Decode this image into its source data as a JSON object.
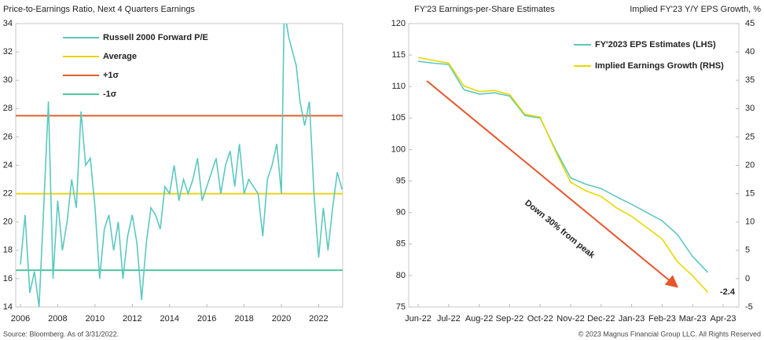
{
  "chart_data": [
    {
      "type": "line",
      "title": "Price-to-Earnings Ratio, Next 4 Quarters Earnings",
      "x": [
        2006.0,
        2006.25,
        2006.5,
        2006.75,
        2007.0,
        2007.25,
        2007.5,
        2007.75,
        2008.0,
        2008.25,
        2008.5,
        2008.75,
        2009.0,
        2009.25,
        2009.5,
        2009.75,
        2010.0,
        2010.25,
        2010.5,
        2010.75,
        2011.0,
        2011.25,
        2011.5,
        2011.75,
        2012.0,
        2012.25,
        2012.5,
        2012.75,
        2013.0,
        2013.25,
        2013.5,
        2013.75,
        2014.0,
        2014.25,
        2014.5,
        2014.75,
        2015.0,
        2015.25,
        2015.5,
        2015.75,
        2016.0,
        2016.25,
        2016.5,
        2016.75,
        2017.0,
        2017.25,
        2017.5,
        2017.75,
        2018.0,
        2018.25,
        2018.5,
        2018.75,
        2019.0,
        2019.25,
        2019.5,
        2019.75,
        2020.0,
        2020.15,
        2020.4,
        2020.6,
        2020.8,
        2021.0,
        2021.25,
        2021.5,
        2021.75,
        2022.0,
        2022.25,
        2022.5,
        2022.75,
        2023.0,
        2023.25
      ],
      "series": [
        {
          "name": "Russell 2000 Forward P/E",
          "color": "#5cc8c0",
          "values": [
            17,
            20.5,
            15,
            16.5,
            14,
            21,
            28.5,
            16,
            21.5,
            18,
            20,
            23,
            21,
            27.8,
            24,
            24.5,
            21,
            16,
            19.5,
            20.5,
            18,
            20,
            16,
            19,
            20.5,
            18.5,
            14.5,
            18.5,
            21,
            20.5,
            19.5,
            22.5,
            22,
            24,
            21.5,
            23,
            22,
            23,
            24.5,
            21.5,
            22.5,
            23.5,
            24.5,
            22,
            24,
            25,
            22.5,
            25.5,
            22,
            23,
            22.5,
            22,
            19,
            23,
            24,
            25.5,
            22,
            35,
            33,
            32,
            31,
            28.5,
            26.8,
            28.5,
            22,
            17.5,
            21,
            18,
            21,
            23.5,
            22.3
          ]
        }
      ],
      "reference_lines": [
        {
          "name": "Average",
          "color": "#e8d41a",
          "value": 22
        },
        {
          "name": "+1σ",
          "color": "#e0602a",
          "value": 27.5
        },
        {
          "name": "-1σ",
          "color": "#4fc7a0",
          "value": 16.6
        }
      ],
      "xlim": [
        2006,
        2023.5
      ],
      "xticks": [
        2006,
        2008,
        2010,
        2012,
        2014,
        2016,
        2018,
        2020,
        2022
      ],
      "ylim": [
        14,
        34
      ],
      "yticks": [
        14,
        16,
        18,
        20,
        22,
        24,
        26,
        28,
        30,
        32,
        34
      ],
      "grid": false
    },
    {
      "type": "line",
      "title": "FY'23 Earnings-per-Share Estimates",
      "y2_label": "Implied FY'23 Y/Y EPS Growth, %",
      "x": [
        0,
        0.5,
        1,
        1.5,
        2,
        2.5,
        3,
        3.5,
        4,
        4.5,
        5,
        5.5,
        6,
        6.5,
        7,
        7.5,
        8,
        8.5,
        9,
        9.5
      ],
      "series": [
        {
          "name": "FY'2023 EPS Estimates (LHS)",
          "color": "#5cc8c0",
          "values": [
            114,
            113.7,
            113.5,
            109.5,
            108.8,
            109,
            108.5,
            105.4,
            105,
            100,
            95.5,
            94.5,
            93.8,
            92.5,
            91.3,
            90,
            88.7,
            86.5,
            83,
            80.5
          ]
        },
        {
          "name": "Implied Earnings Growth (RHS)",
          "color": "#e8d800",
          "axis": "y2",
          "values": [
            39,
            38.5,
            38,
            34,
            33,
            33.2,
            32.5,
            29,
            28.5,
            22.5,
            17,
            15.5,
            14.5,
            12.5,
            11,
            9,
            7,
            3,
            0.5,
            -2.4
          ]
        }
      ],
      "annotation": "Down 30% from peak",
      "xlim": [
        0,
        10
      ],
      "xticks": [
        {
          "value": 0,
          "label": "Jun-22"
        },
        {
          "value": 1,
          "label": "Jul-22"
        },
        {
          "value": 2,
          "label": "Aug-22"
        },
        {
          "value": 3,
          "label": "Sep-22"
        },
        {
          "value": 4,
          "label": "Oct-22"
        },
        {
          "value": 5,
          "label": "Nov-22"
        },
        {
          "value": 6,
          "label": "Dec-22"
        },
        {
          "value": 7,
          "label": "Jan-23"
        },
        {
          "value": 8,
          "label": "Feb-23"
        },
        {
          "value": 9,
          "label": "Mar-23"
        },
        {
          "value": 10,
          "label": "Apr-23"
        }
      ],
      "ylim": [
        75,
        120
      ],
      "yticks": [
        75,
        80,
        85,
        90,
        95,
        100,
        105,
        110,
        115,
        120
      ],
      "y2lim": [
        -5,
        45
      ],
      "y2ticks": [
        -5,
        0,
        5,
        10,
        15,
        20,
        25,
        30,
        35,
        40,
        45
      ],
      "grid": false
    }
  ],
  "footer": {
    "source": "Source: Bloomberg. As of 3/31/2022.",
    "copyright": "© 2023 Magnus Financial Group LLC. All Rights Reserved"
  }
}
